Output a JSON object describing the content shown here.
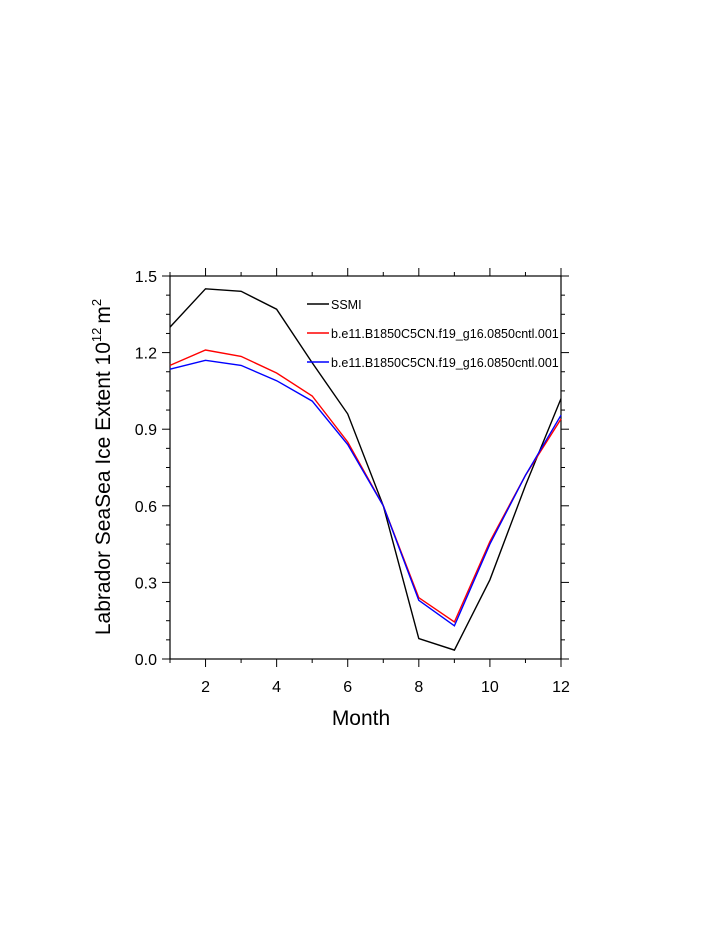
{
  "chart_data": {
    "type": "line",
    "title": "",
    "xlabel": "Month",
    "ylabel_main": "Labrador SeaSea Ice Extent 10",
    "ylabel_exp": "12",
    "ylabel_unit": "m",
    "ylabel_unit_exp": "2",
    "xlim": [
      1,
      12
    ],
    "ylim": [
      0,
      1.5
    ],
    "xticks": [
      2,
      4,
      6,
      8,
      10,
      12
    ],
    "yticks": [
      0.0,
      0.3,
      0.6,
      0.9,
      1.2,
      1.5
    ],
    "ytick_labels": [
      "0.0",
      "0.3",
      "0.6",
      "0.9",
      "1.2",
      "1.5"
    ],
    "xtick_labels": [
      "2",
      "4",
      "6",
      "8",
      "10",
      "12"
    ],
    "legend_position": "top-right",
    "series": [
      {
        "name": "SSMI",
        "color": "#000000",
        "x": [
          1,
          2,
          3,
          4,
          5,
          6,
          7,
          8,
          9,
          10,
          11,
          12
        ],
        "values": [
          1.3,
          1.45,
          1.44,
          1.37,
          1.16,
          0.96,
          0.6,
          0.08,
          0.035,
          0.31,
          0.68,
          1.02
        ]
      },
      {
        "name": "b.e11.B1850C5CN.f19_g16.0850cntl.001",
        "color": "#ff0000",
        "x": [
          1,
          2,
          3,
          4,
          5,
          6,
          7,
          8,
          9,
          10,
          11,
          12
        ],
        "values": [
          1.15,
          1.21,
          1.185,
          1.12,
          1.03,
          0.85,
          0.6,
          0.24,
          0.145,
          0.46,
          0.72,
          0.94
        ]
      },
      {
        "name": "b.e11.B1850C5CN.f19_g16.0850cntl.001",
        "color": "#0000ff",
        "x": [
          1,
          2,
          3,
          4,
          5,
          6,
          7,
          8,
          9,
          10,
          11,
          12
        ],
        "values": [
          1.135,
          1.17,
          1.15,
          1.09,
          1.01,
          0.84,
          0.6,
          0.23,
          0.13,
          0.45,
          0.72,
          0.955
        ]
      }
    ]
  }
}
